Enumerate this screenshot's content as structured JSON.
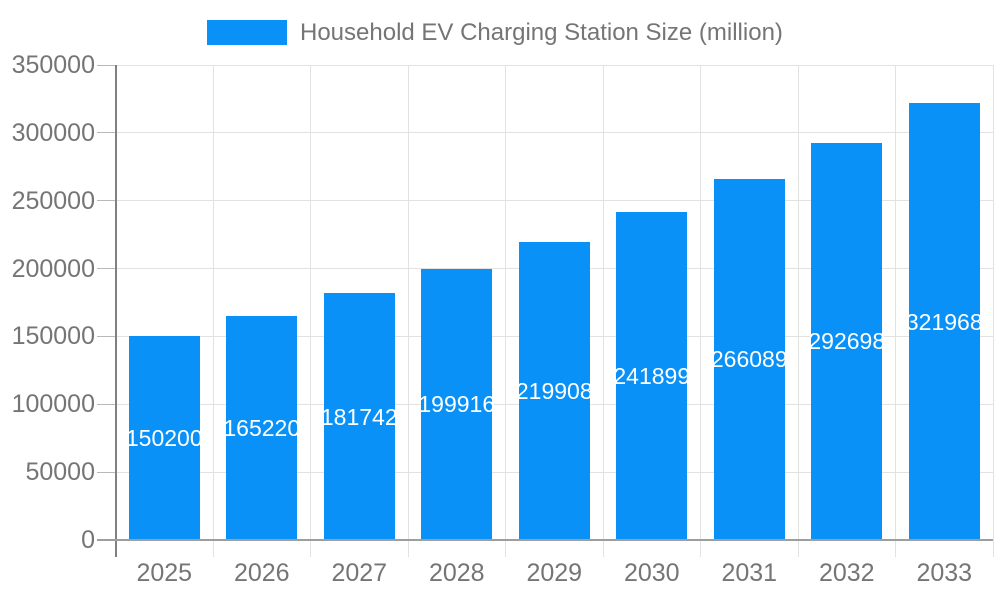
{
  "chart_data": {
    "type": "bar",
    "title": "Household EV Charging Station Size (million)",
    "legend": {
      "position": "top",
      "label": "Household EV Charging Station Size (million)"
    },
    "categories": [
      "2025",
      "2026",
      "2027",
      "2028",
      "2029",
      "2030",
      "2031",
      "2032",
      "2033"
    ],
    "series": [
      {
        "name": "Household EV Charging Station Size (million)",
        "values": [
          150200,
          165220,
          181742,
          199916,
          219908,
          241899,
          266089,
          292698,
          321968
        ]
      }
    ],
    "data_labels": [
      "150200",
      "165220",
      "181742",
      "199916",
      "219908",
      "241899",
      "266089",
      "292698",
      "321968"
    ],
    "xlabel": "",
    "ylabel": "",
    "ylim": [
      0,
      350000
    ],
    "ytick_step": 50000,
    "ytick_labels": [
      "0",
      "50000",
      "100000",
      "150000",
      "200000",
      "250000",
      "300000",
      "350000"
    ],
    "grid": true,
    "colors": {
      "bar": "#0991f8",
      "bar_label": "#ffffff",
      "axis_text": "#757575",
      "gridline": "#e2e2e2",
      "axis_line": "#808080",
      "baseline": "#9e9e9e",
      "background": "#ffffff"
    }
  }
}
